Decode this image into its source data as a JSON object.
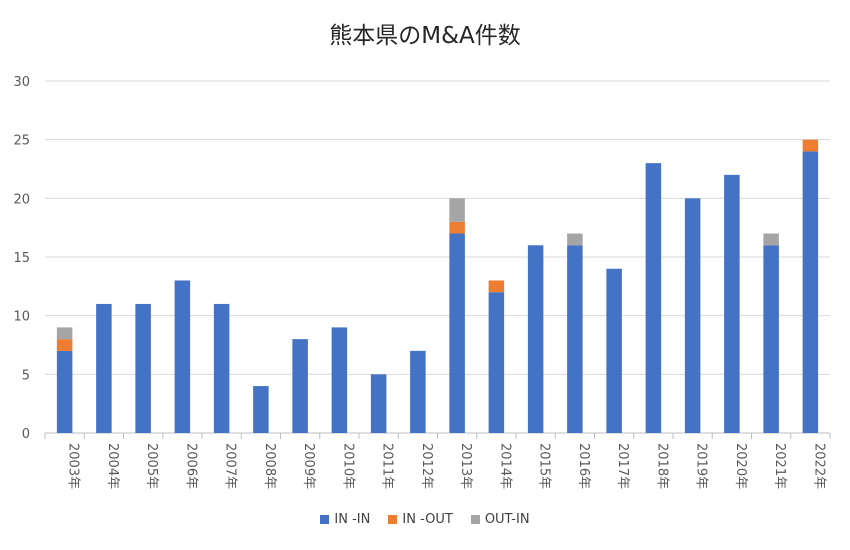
{
  "chart_data": {
    "type": "bar",
    "stacked": true,
    "title": "熊本県のM&A件数",
    "categories": [
      "2003年",
      "2004年",
      "2005年",
      "2006年",
      "2007年",
      "2008年",
      "2009年",
      "2010年",
      "2011年",
      "2012年",
      "2013年",
      "2014年",
      "2015年",
      "2016年",
      "2017年",
      "2018年",
      "2019年",
      "2020年",
      "2021年",
      "2022年"
    ],
    "series": [
      {
        "name": "IN -IN",
        "color": "#4472C4",
        "values": [
          7,
          11,
          11,
          13,
          11,
          4,
          8,
          9,
          5,
          7,
          17,
          12,
          16,
          16,
          14,
          23,
          20,
          22,
          16,
          24
        ]
      },
      {
        "name": "IN -OUT",
        "color": "#ED7D31",
        "values": [
          1,
          0,
          0,
          0,
          0,
          0,
          0,
          0,
          0,
          0,
          1,
          1,
          0,
          0,
          0,
          0,
          0,
          0,
          0,
          1
        ]
      },
      {
        "name": "OUT-IN",
        "color": "#A5A5A5",
        "values": [
          1,
          0,
          0,
          0,
          0,
          0,
          0,
          0,
          0,
          0,
          2,
          0,
          0,
          1,
          0,
          0,
          0,
          0,
          1,
          0
        ]
      }
    ],
    "ylim": [
      0,
      30
    ],
    "yticks": [
      0,
      5,
      10,
      15,
      20,
      25,
      30
    ],
    "grid": true,
    "legend_position": "bottom",
    "xlabel": "",
    "ylabel": ""
  }
}
